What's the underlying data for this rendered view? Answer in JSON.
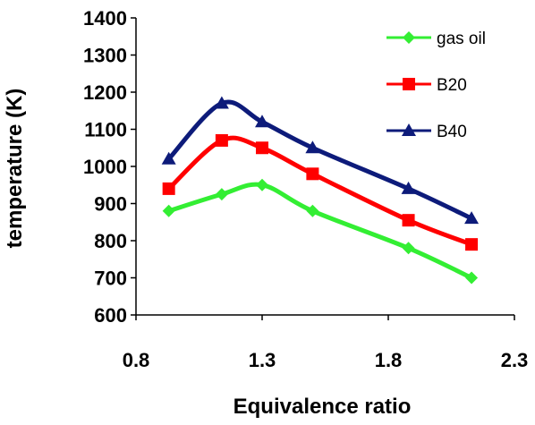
{
  "chart_data": {
    "type": "line",
    "title": "",
    "xlabel": "Equivalence ratio",
    "ylabel": "temperature (K)",
    "xlim": [
      0.8,
      2.3
    ],
    "ylim": [
      600,
      1400
    ],
    "xticks": [
      "0.8",
      "1.3",
      "1.8",
      "2.3"
    ],
    "yticks": [
      "600",
      "700",
      "800",
      "900",
      "1000",
      "1100",
      "1200",
      "1300",
      "1400"
    ],
    "grid": false,
    "legend_position": "top-right",
    "series": [
      {
        "name": "gas oil",
        "marker": "diamond",
        "color": "#33ee33",
        "x": [
          0.93,
          1.14,
          1.3,
          1.5,
          1.88,
          2.13
        ],
        "y": [
          880,
          925,
          950,
          880,
          780,
          700
        ]
      },
      {
        "name": "B20",
        "marker": "square",
        "color": "#ff0000",
        "x": [
          0.93,
          1.14,
          1.3,
          1.5,
          1.88,
          2.13
        ],
        "y": [
          940,
          1070,
          1050,
          980,
          855,
          790
        ]
      },
      {
        "name": "B40",
        "marker": "triangle",
        "color": "#0d1b7a",
        "x": [
          0.93,
          1.14,
          1.3,
          1.5,
          1.88,
          2.13
        ],
        "y": [
          1020,
          1170,
          1120,
          1050,
          940,
          860
        ]
      }
    ]
  }
}
